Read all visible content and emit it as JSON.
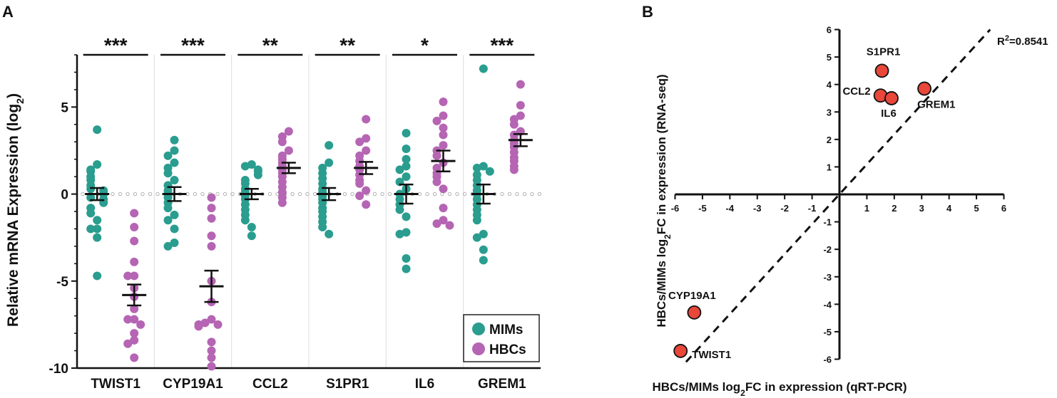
{
  "panel_a_label": "A",
  "panel_b_label": "B",
  "chart_data": [
    {
      "type": "scatter",
      "title": "",
      "ylabel": "Relative mRNA Expression (log",
      "ylabel_sub": "2",
      "ylabel_end": ")",
      "ylim": [
        -10,
        8
      ],
      "yticks": [
        5,
        0,
        -5,
        -10
      ],
      "ytick_labels": [
        "5",
        "0",
        "-5",
        "-10"
      ],
      "legend": {
        "position": "bottom-right",
        "entries": [
          "MIMs",
          "HBCs"
        ]
      },
      "colors": {
        "MIMs": "#2a9d8f",
        "HBCs": "#b565b3"
      },
      "categories": [
        "TWIST1",
        "CYP19A1",
        "CCL2",
        "S1PR1",
        "IL6",
        "GREM1"
      ],
      "significance": [
        "***",
        "***",
        "**",
        "**",
        "*",
        "***"
      ],
      "series": [
        {
          "name": "MIMs",
          "mean": [
            0,
            0,
            0,
            0,
            0,
            0
          ],
          "sem": [
            0.35,
            0.4,
            0.3,
            0.35,
            0.55,
            0.55
          ],
          "points": [
            [
              3.7,
              1.7,
              1.4,
              1.3,
              1.0,
              0.8,
              0.5,
              0.3,
              0.2,
              0.0,
              -0.2,
              -0.3,
              -0.5,
              -0.8,
              -1.1,
              -1.5,
              -2.0,
              -2.0,
              -2.5,
              -4.7
            ],
            [
              3.1,
              2.5,
              2.2,
              1.8,
              1.5,
              1.2,
              0.8,
              0.5,
              0.2,
              0.0,
              -0.2,
              -0.5,
              -0.8,
              -1.2,
              -1.5,
              -2.0,
              -2.8,
              -3.0
            ],
            [
              1.7,
              1.6,
              1.4,
              1.3,
              1.1,
              0.8,
              0.6,
              0.3,
              0.1,
              -0.1,
              -0.3,
              -0.6,
              -0.9,
              -1.2,
              -1.5,
              -1.9,
              -2.4
            ],
            [
              2.8,
              1.8,
              1.5,
              1.2,
              0.9,
              0.6,
              0.3,
              0.1,
              -0.1,
              -0.3,
              -0.5,
              -0.8,
              -1.0,
              -1.3,
              -1.6,
              -1.9,
              -2.3
            ],
            [
              3.5,
              2.6,
              2.0,
              1.6,
              1.4,
              1.0,
              0.7,
              0.3,
              0.0,
              -0.3,
              -0.6,
              -0.9,
              -1.3,
              -2.2,
              -2.3,
              -3.7,
              -4.3
            ],
            [
              7.2,
              1.6,
              1.5,
              1.3,
              1.1,
              0.8,
              0.5,
              0.2,
              0.0,
              -0.3,
              -0.6,
              -0.9,
              -1.2,
              -1.5,
              -2.3,
              -2.5,
              -3.2,
              -3.8
            ]
          ]
        },
        {
          "name": "HBCs",
          "mean": [
            -5.8,
            -5.3,
            1.5,
            1.5,
            1.9,
            3.1
          ],
          "sem": [
            0.6,
            0.9,
            0.3,
            0.35,
            0.6,
            0.35
          ],
          "points": [
            [
              -1.1,
              -1.9,
              -2.7,
              -3.9,
              -4.7,
              -4.7,
              -5.4,
              -5.9,
              -6.6,
              -7.2,
              -7.2,
              -7.5,
              -8.0,
              -8.4,
              -8.6,
              -9.4
            ],
            [
              -0.2,
              -0.8,
              -1.4,
              -2.4,
              -3.0,
              -5.0,
              -6.2,
              -7.2,
              -7.4,
              -7.5,
              -7.5,
              -7.6,
              -8.5,
              -9.0,
              -9.4,
              -9.9
            ],
            [
              3.6,
              3.3,
              3.0,
              2.5,
              2.2,
              2.0,
              1.8,
              1.6,
              1.4,
              1.2,
              1.0,
              0.7,
              0.4,
              0.1,
              -0.2,
              -0.5
            ],
            [
              4.3,
              3.2,
              3.0,
              2.5,
              2.2,
              1.9,
              1.6,
              1.4,
              1.1,
              0.8,
              0.6,
              0.2,
              -0.1,
              -0.6
            ],
            [
              5.3,
              4.5,
              4.2,
              3.8,
              3.4,
              2.8,
              2.5,
              2.2,
              1.8,
              1.5,
              1.2,
              1.0,
              0.7,
              0.3,
              -0.8,
              -1.5,
              -1.7,
              -1.8
            ],
            [
              6.3,
              5.1,
              4.5,
              4.3,
              4.0,
              3.6,
              3.4,
              3.1,
              2.9,
              2.7,
              2.4,
              2.1,
              1.9,
              1.6,
              1.4
            ]
          ]
        }
      ]
    },
    {
      "type": "scatter",
      "xlabel": "HBCs/MIMs log",
      "xlabel_sub": "2",
      "xlabel_end": "FC in expression (qRT-PCR)",
      "ylabel": "HBCs/MIMs log",
      "ylabel_sub": "2",
      "ylabel_end": "FC in expression (RNA-seq)",
      "xlim": [
        -6,
        6
      ],
      "ylim": [
        -6,
        6
      ],
      "xticks": [
        -6,
        -5,
        -4,
        -3,
        -2,
        -1,
        1,
        2,
        3,
        4,
        5,
        6
      ],
      "xtick_labels": [
        "-6",
        "-5",
        "-4",
        "-3",
        "-2",
        "-1",
        "1",
        "2",
        "3",
        "4",
        "5",
        "6"
      ],
      "yticks": [
        6,
        5,
        4,
        3,
        2,
        1,
        -1,
        -2,
        -3,
        -4,
        -5,
        -6
      ],
      "ytick_labels": [
        "6",
        "5",
        "4",
        "3",
        "2",
        "1",
        "-1",
        "-2",
        "-3",
        "-4",
        "-5",
        "-6"
      ],
      "point_color": "#e8473a",
      "annotation": "R",
      "annotation_sup": "2",
      "annotation_end": "=0.8541",
      "fit_line": {
        "from": [
          -5.6,
          -6.1
        ],
        "to": [
          5.5,
          6.0
        ]
      },
      "points": [
        {
          "label": "S1PR1",
          "x": 1.55,
          "y": 4.5
        },
        {
          "label": "CCL2",
          "x": 1.5,
          "y": 3.6
        },
        {
          "label": "IL6",
          "x": 1.9,
          "y": 3.5
        },
        {
          "label": "GREM1",
          "x": 3.1,
          "y": 3.85
        },
        {
          "label": "CYP19A1",
          "x": -5.3,
          "y": -4.3
        },
        {
          "label": "TWIST1",
          "x": -5.8,
          "y": -5.7
        }
      ]
    }
  ]
}
